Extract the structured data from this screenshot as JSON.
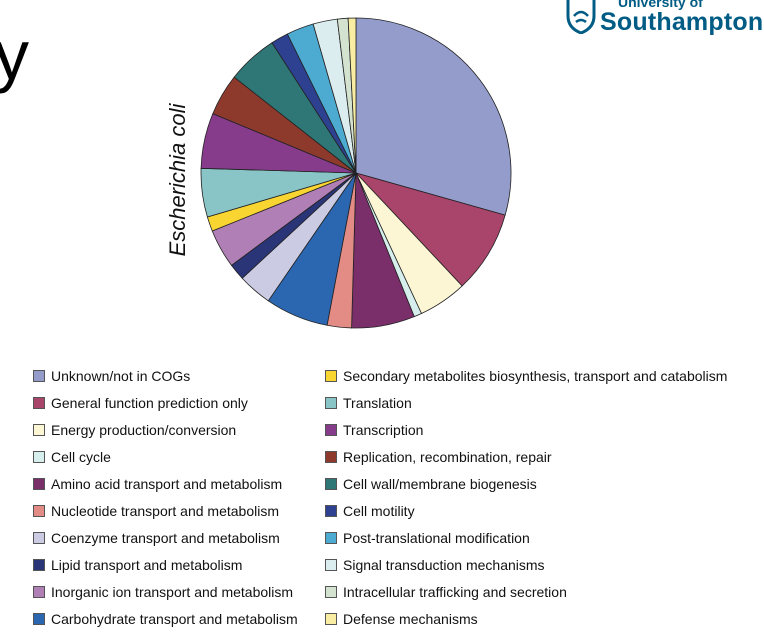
{
  "page": {
    "partial_title": "y"
  },
  "logo": {
    "line1": "University of",
    "line2": "Southampton"
  },
  "chart_data": {
    "type": "pie",
    "ylabel": "Escherichia coli",
    "start_angle_deg": 0,
    "direction": "clockwise",
    "slices": [
      {
        "label": "Unknown/not in COGs",
        "value": 29.0,
        "color": "#949CCB"
      },
      {
        "label": "General function prediction only",
        "value": 8.5,
        "color": "#A9446B"
      },
      {
        "label": "Energy production/conversion",
        "value": 5.0,
        "color": "#FDF6D5"
      },
      {
        "label": "Cell cycle",
        "value": 0.8,
        "color": "#D7EFEC"
      },
      {
        "label": "Amino acid transport and metabolism",
        "value": 6.5,
        "color": "#7A2F6A"
      },
      {
        "label": "Nucleotide transport and metabolism",
        "value": 2.5,
        "color": "#E38C86"
      },
      {
        "label": "Carbohydrate transport and metabolism",
        "value": 6.5,
        "color": "#2B66B1"
      },
      {
        "label": "Coenzyme transport and metabolism",
        "value": 3.5,
        "color": "#CBCCE4"
      },
      {
        "label": "Lipid transport and metabolism",
        "value": 1.7,
        "color": "#2A3577"
      },
      {
        "label": "Inorganic ion transport and metabolism",
        "value": 4.0,
        "color": "#B07FB5"
      },
      {
        "label": "Secondary metabolites biosynthesis, transport and catabolism",
        "value": 1.5,
        "color": "#F9D532"
      },
      {
        "label": "Translation",
        "value": 5.0,
        "color": "#89C5C6"
      },
      {
        "label": "Transcription",
        "value": 5.7,
        "color": "#863B8B"
      },
      {
        "label": "Replication, recombination, repair",
        "value": 4.3,
        "color": "#8D3A2D"
      },
      {
        "label": "Cell wall/membrane biogenesis",
        "value": 5.2,
        "color": "#2F7776"
      },
      {
        "label": "Cell motility",
        "value": 1.8,
        "color": "#2D4190"
      },
      {
        "label": "Post-translational modification",
        "value": 2.8,
        "color": "#4DAAD0"
      },
      {
        "label": "Signal transduction mechanisms",
        "value": 2.5,
        "color": "#DCEDF0"
      },
      {
        "label": "Intracellular trafficking and secretion",
        "value": 1.1,
        "color": "#D4E3D0"
      },
      {
        "label": "Defense mechanisms",
        "value": 0.8,
        "color": "#F8EDA2"
      }
    ],
    "legend": {
      "placement": "bottom",
      "columns": [
        [
          "Unknown/not in COGs",
          "General function prediction only",
          "Energy production/conversion",
          "Cell cycle",
          "Amino acid transport and metabolism",
          "Nucleotide transport and metabolism",
          "Coenzyme transport and metabolism",
          "Lipid transport and metabolism",
          "Inorganic ion transport and metabolism",
          "Carbohydrate transport and metabolism"
        ],
        [
          "Secondary metabolites biosynthesis, transport and catabolism",
          "Translation",
          "Transcription",
          "Replication, recombination, repair",
          "Cell wall/membrane biogenesis",
          "Cell motility",
          "Post-translational modification",
          "Signal transduction mechanisms",
          "Intracellular trafficking and secretion",
          "Defense mechanisms"
        ]
      ]
    }
  }
}
